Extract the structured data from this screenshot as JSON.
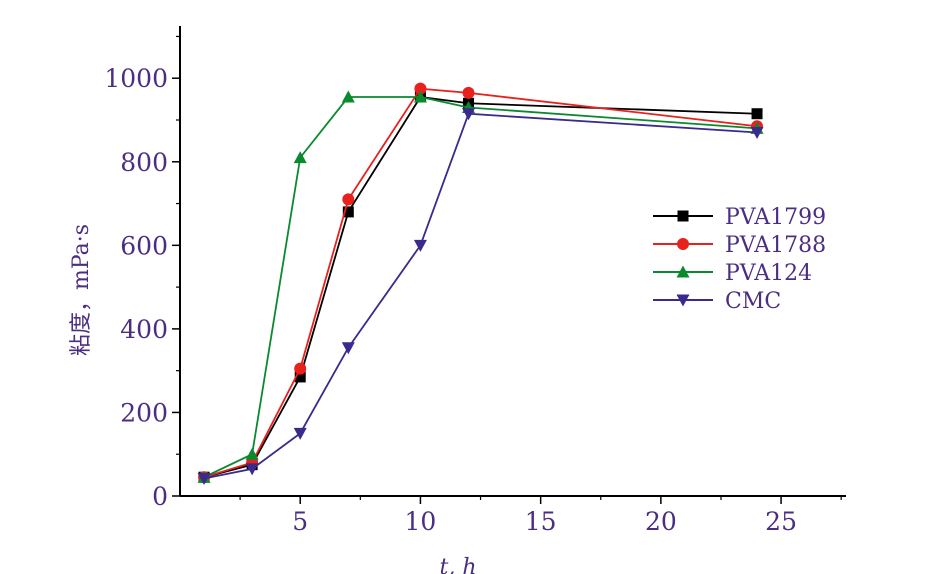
{
  "chart_data": {
    "type": "line",
    "xlabel": "t, h",
    "ylabel": "粘度，mPa·s",
    "xlim": [
      0,
      27.7
    ],
    "ylim": [
      0,
      1125
    ],
    "xticks": [
      5,
      10,
      15,
      20,
      25
    ],
    "xtick_labels": [
      "5",
      "10",
      "15",
      "20",
      "25"
    ],
    "yticks": [
      0,
      200,
      400,
      600,
      800,
      1000
    ],
    "ytick_labels": [
      "0",
      "200",
      "400",
      "600",
      "800",
      "1000"
    ],
    "grid": false,
    "legend_position": "right",
    "series": [
      {
        "name": "PVA1799",
        "color": "#000000",
        "marker": "square",
        "x": [
          1,
          3,
          5,
          7,
          10,
          12,
          24
        ],
        "y": [
          45,
          75,
          285,
          680,
          955,
          940,
          915
        ]
      },
      {
        "name": "PVA1788",
        "color": "#e8211d",
        "marker": "circle",
        "x": [
          1,
          3,
          5,
          7,
          10,
          12,
          24
        ],
        "y": [
          45,
          80,
          305,
          710,
          975,
          965,
          885
        ]
      },
      {
        "name": "PVA124",
        "color": "#0a8a2e",
        "marker": "triangle-up",
        "x": [
          1,
          3,
          5,
          7,
          10,
          12,
          24
        ],
        "y": [
          45,
          100,
          810,
          955,
          955,
          930,
          880
        ]
      },
      {
        "name": "CMC",
        "color": "#3a2a8c",
        "marker": "triangle-down",
        "x": [
          1,
          3,
          5,
          7,
          10,
          12,
          24
        ],
        "y": [
          42,
          65,
          150,
          355,
          600,
          915,
          870
        ]
      }
    ]
  }
}
